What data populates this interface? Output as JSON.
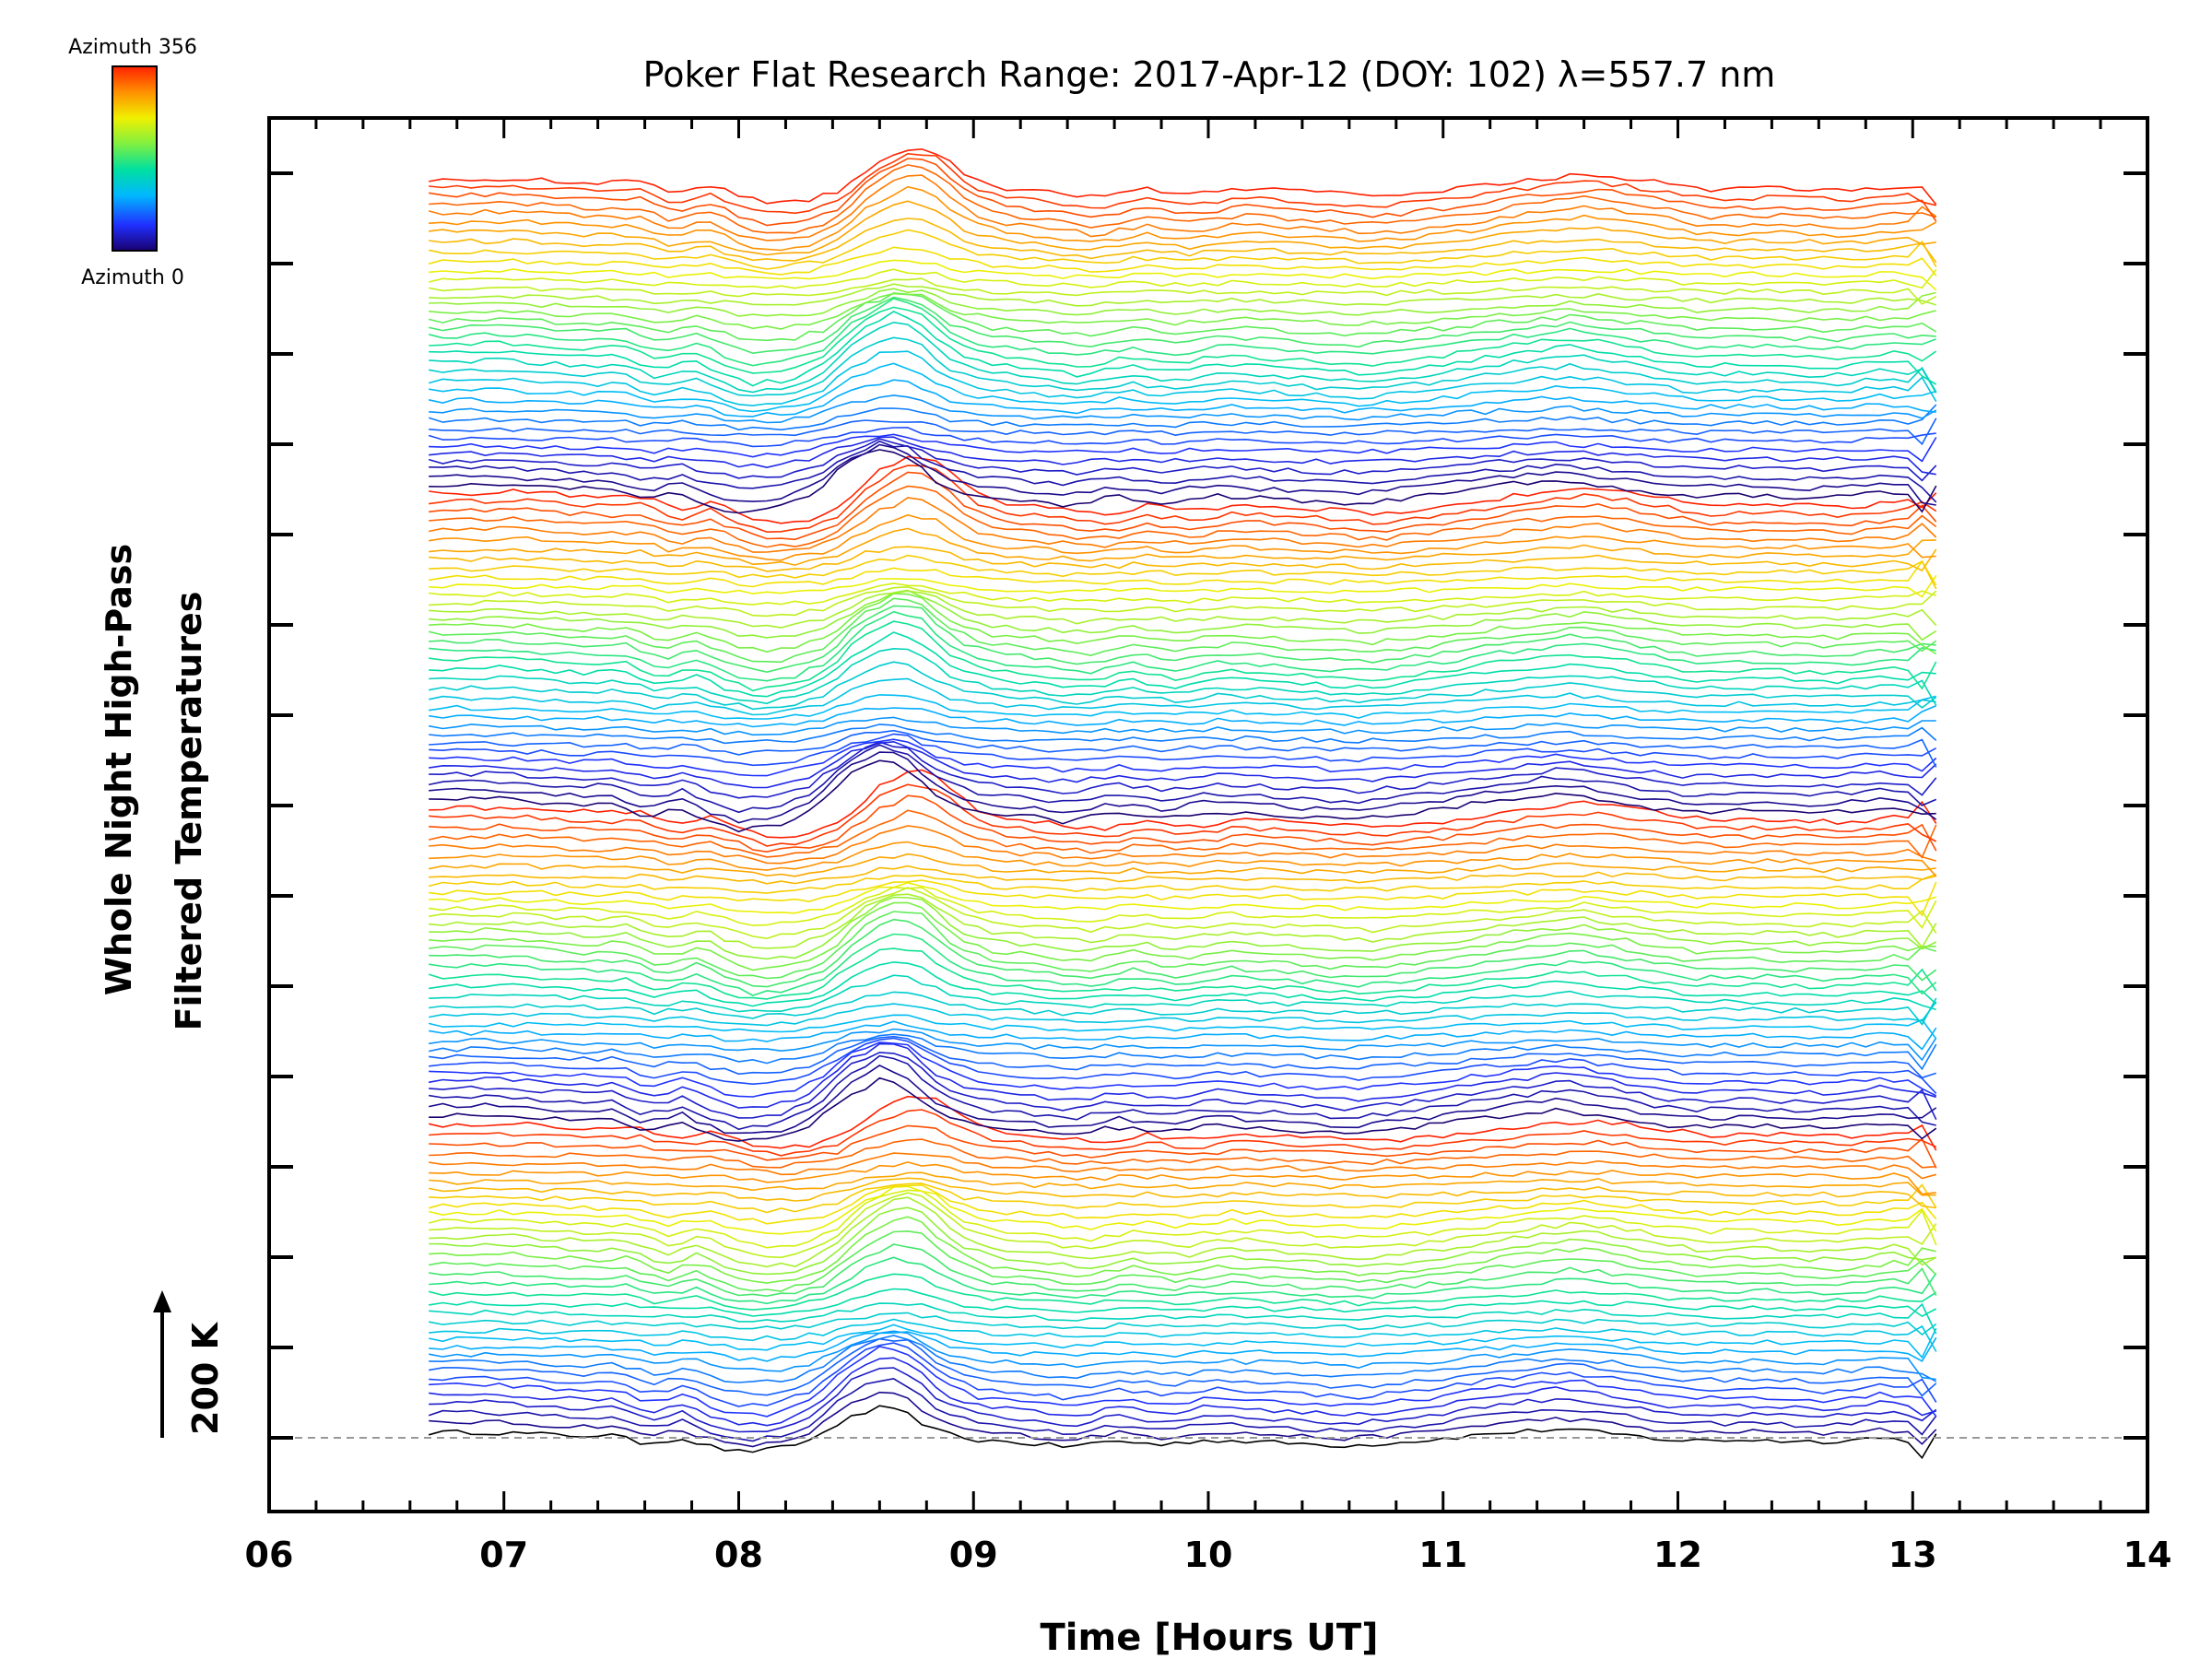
{
  "chart_data": {
    "type": "line",
    "title": "Poker Flat Research Range: 2017-Apr-12 (DOY: 102) λ=557.7 nm",
    "xlabel": "Time [Hours UT]",
    "ylabel_line1": "Whole Night High-Pass",
    "ylabel_line2": "Filtered Temperatures",
    "scale_label": "200 K",
    "xlim": [
      6,
      14
    ],
    "x_ticks": [
      "06",
      "07",
      "08",
      "09",
      "10",
      "11",
      "12",
      "13",
      "14"
    ],
    "x_range_data": [
      6.68,
      13.15
    ],
    "num_traces": 144,
    "trace_offset_K": 25,
    "trace_count_description": "144 stacked traces, one per azimuth 0 to 356 deg in steps of ~2.5 deg, each offset vertically",
    "colorbar": {
      "top_label": "Azimuth 356",
      "bottom_label": "Azimuth 0",
      "colors": [
        "#1a0070",
        "#2030ff",
        "#00b8ff",
        "#00e0a0",
        "#80f040",
        "#f0f000",
        "#ff9000",
        "#ff2000"
      ]
    },
    "grid": false,
    "reference_line": "dashed gray at base trace zero",
    "common_signal": {
      "x": [
        6.7,
        6.9,
        7.1,
        7.3,
        7.45,
        7.6,
        7.75,
        7.9,
        8.0,
        8.15,
        8.3,
        8.45,
        8.6,
        8.7,
        8.85,
        9.0,
        9.2,
        9.4,
        9.6,
        9.8,
        10.0,
        10.3,
        10.6,
        10.9,
        11.2,
        11.5,
        11.8,
        12.0,
        12.3,
        12.6,
        12.85,
        13.0,
        13.15
      ],
      "y_K": [
        5,
        6,
        4,
        2,
        3,
        -6,
        0,
        -10,
        -14,
        -12,
        -3,
        18,
        30,
        26,
        6,
        -2,
        -5,
        -9,
        -3,
        -7,
        -2,
        -5,
        -8,
        -3,
        4,
        9,
        2,
        -3,
        -2,
        -4,
        0,
        -3,
        -8
      ]
    }
  }
}
